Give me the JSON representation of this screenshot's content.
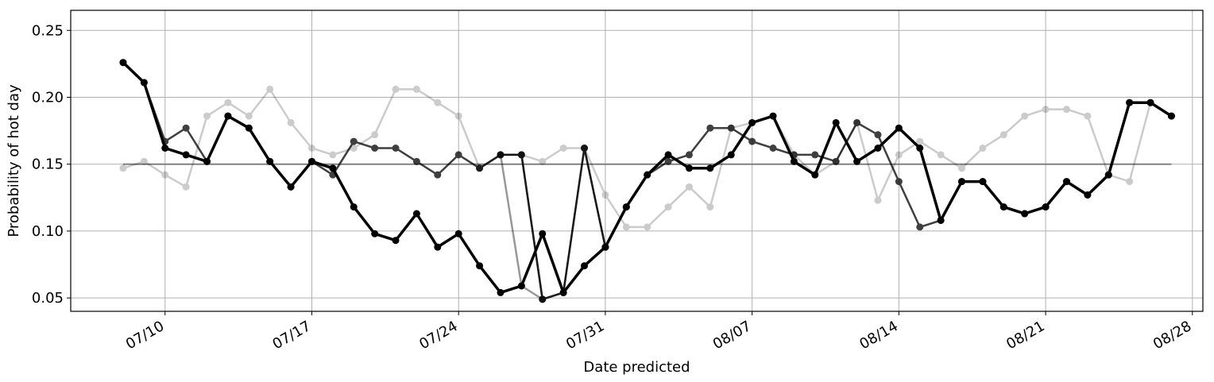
{
  "chart_data": {
    "type": "line",
    "xlabel": "Date predicted",
    "ylabel": "Probability of hot day",
    "year": 2020,
    "x_start": "2020-07-08",
    "xlim": [
      "2020-07-05T12:00",
      "2020-08-28T12:00"
    ],
    "ylim": [
      0.04,
      0.265
    ],
    "grid": true,
    "x_ticks": [
      "2020-07-10",
      "2020-07-17",
      "2020-07-24",
      "2020-07-31",
      "2020-08-07",
      "2020-08-14",
      "2020-08-21",
      "2020-08-28"
    ],
    "x_tick_labels": [
      "07/10",
      "07/17",
      "07/24",
      "07/31",
      "08/07",
      "08/14",
      "08/21",
      "08/28"
    ],
    "y_ticks": [
      0.05,
      0.1,
      0.15,
      0.2,
      0.25
    ],
    "y_tick_labels": [
      "0.05",
      "0.10",
      "0.15",
      "0.20",
      "0.25"
    ],
    "reference_line": {
      "value": 0.15,
      "color": "#808080",
      "x_range": [
        "2020-07-08",
        "2020-08-27"
      ]
    },
    "series": [
      {
        "color": "#000000",
        "opacity": 0.2,
        "line_width": 2.5,
        "x": [
          "2020-07-08",
          "2020-07-09",
          "2020-07-10",
          "2020-07-11",
          "2020-07-12",
          "2020-07-13",
          "2020-07-14",
          "2020-07-15",
          "2020-07-16",
          "2020-07-17",
          "2020-07-18",
          "2020-07-19",
          "2020-07-20",
          "2020-07-21",
          "2020-07-22",
          "2020-07-23",
          "2020-07-24",
          "2020-07-25",
          "2020-07-26",
          "2020-07-27",
          "2020-07-28",
          "2020-07-29",
          "2020-07-30",
          "2020-07-31",
          "2020-08-01",
          "2020-08-02",
          "2020-08-03",
          "2020-08-04",
          "2020-08-05",
          "2020-08-06",
          "2020-08-07",
          "2020-08-08",
          "2020-08-09",
          "2020-08-10",
          "2020-08-11",
          "2020-08-12",
          "2020-08-13",
          "2020-08-14",
          "2020-08-15",
          "2020-08-16",
          "2020-08-17",
          "2020-08-18",
          "2020-08-19",
          "2020-08-20",
          "2020-08-21",
          "2020-08-22",
          "2020-08-23",
          "2020-08-24",
          "2020-08-25",
          "2020-08-26",
          "2020-08-27"
        ],
        "values": [
          0.147,
          0.152,
          0.142,
          0.133,
          0.186,
          0.196,
          0.186,
          0.206,
          0.181,
          0.162,
          0.157,
          0.162,
          0.172,
          0.206,
          0.206,
          0.196,
          0.186,
          0.147,
          0.157,
          0.157,
          0.152,
          0.162,
          0.162,
          0.127,
          0.103,
          0.103,
          0.118,
          0.133,
          0.118,
          0.177,
          0.181,
          0.186,
          0.157,
          0.142,
          0.152,
          0.181,
          0.123,
          0.157,
          0.167,
          0.157,
          0.147,
          0.162,
          0.172,
          0.186,
          0.191,
          0.191,
          0.186,
          0.142,
          0.137,
          0.196,
          0.186
        ]
      },
      {
        "color": "#000000",
        "opacity": 0.4,
        "line_width": 2.5,
        "x": [
          "2020-07-25",
          "2020-07-26",
          "2020-07-27",
          "2020-07-28"
        ],
        "values": [
          0.147,
          0.157,
          0.059,
          0.049
        ]
      },
      {
        "color": "#000000",
        "opacity": 0.6,
        "line_width": 2.5,
        "x": [
          "2020-07-26",
          "2020-07-27",
          "2020-07-28",
          "2020-07-29",
          "2020-07-30",
          "2020-07-31"
        ],
        "values": [
          0.157,
          0.157,
          0.049,
          0.054,
          0.162,
          0.088
        ]
      },
      {
        "color": "#000000",
        "opacity": 0.75,
        "line_width": 2.5,
        "x": [
          "2020-07-08",
          "2020-07-09",
          "2020-07-10",
          "2020-07-11",
          "2020-07-12",
          "2020-07-13",
          "2020-07-14",
          "2020-07-15",
          "2020-07-16",
          "2020-07-17",
          "2020-07-18",
          "2020-07-19",
          "2020-07-20",
          "2020-07-21",
          "2020-07-22",
          "2020-07-23",
          "2020-07-24",
          "2020-07-25",
          "2020-07-26",
          "2020-07-27",
          "2020-07-28",
          "2020-07-29",
          "2020-07-30",
          "2020-07-31",
          "2020-08-01",
          "2020-08-02",
          "2020-08-03",
          "2020-08-04",
          "2020-08-05",
          "2020-08-06",
          "2020-08-07",
          "2020-08-08",
          "2020-08-09",
          "2020-08-10",
          "2020-08-11",
          "2020-08-12",
          "2020-08-13",
          "2020-08-14",
          "2020-08-15",
          "2020-08-16",
          "2020-08-17",
          "2020-08-18",
          "2020-08-19",
          "2020-08-20",
          "2020-08-21",
          "2020-08-22",
          "2020-08-23",
          "2020-08-24",
          "2020-08-25",
          "2020-08-26",
          "2020-08-27"
        ],
        "values": [
          0.226,
          0.211,
          0.167,
          0.177,
          0.152,
          0.186,
          0.177,
          0.152,
          0.133,
          0.152,
          0.142,
          0.167,
          0.162,
          0.162,
          0.152,
          0.142,
          0.157,
          0.147,
          0.157,
          0.157,
          0.049,
          0.054,
          0.162,
          0.088,
          0.118,
          0.142,
          0.152,
          0.157,
          0.177,
          0.177,
          0.167,
          0.162,
          0.157,
          0.157,
          0.152,
          0.181,
          0.172,
          0.137,
          0.103,
          0.108,
          0.137,
          0.137,
          0.118,
          0.113,
          0.118,
          0.137,
          0.127,
          0.142,
          0.196,
          0.196,
          0.186
        ]
      },
      {
        "color": "#000000",
        "opacity": 1.0,
        "line_width": 3.5,
        "x": [
          "2020-07-08",
          "2020-07-09",
          "2020-07-10",
          "2020-07-11",
          "2020-07-12",
          "2020-07-13",
          "2020-07-14",
          "2020-07-15",
          "2020-07-16",
          "2020-07-17",
          "2020-07-18",
          "2020-07-19",
          "2020-07-20",
          "2020-07-21",
          "2020-07-22",
          "2020-07-23",
          "2020-07-24",
          "2020-07-25",
          "2020-07-26",
          "2020-07-27",
          "2020-07-28",
          "2020-07-29",
          "2020-07-30",
          "2020-07-31",
          "2020-08-01",
          "2020-08-02",
          "2020-08-03",
          "2020-08-04",
          "2020-08-05",
          "2020-08-06",
          "2020-08-07",
          "2020-08-08",
          "2020-08-09",
          "2020-08-10",
          "2020-08-11",
          "2020-08-12",
          "2020-08-13",
          "2020-08-14",
          "2020-08-15",
          "2020-08-16",
          "2020-08-17",
          "2020-08-18",
          "2020-08-19",
          "2020-08-20",
          "2020-08-21",
          "2020-08-22",
          "2020-08-23",
          "2020-08-24",
          "2020-08-25",
          "2020-08-26",
          "2020-08-27"
        ],
        "values": [
          0.226,
          0.211,
          0.162,
          0.157,
          0.152,
          0.186,
          0.177,
          0.152,
          0.133,
          0.152,
          0.147,
          0.118,
          0.098,
          0.093,
          0.113,
          0.088,
          0.098,
          0.074,
          0.054,
          0.059,
          0.098,
          0.054,
          0.074,
          0.088,
          0.118,
          0.142,
          0.157,
          0.147,
          0.147,
          0.157,
          0.181,
          0.186,
          0.152,
          0.142,
          0.181,
          0.152,
          0.162,
          0.177,
          0.162,
          0.108,
          0.137,
          0.137,
          0.118,
          0.113,
          0.118,
          0.137,
          0.127,
          0.142,
          0.196,
          0.196,
          0.186
        ]
      }
    ]
  }
}
